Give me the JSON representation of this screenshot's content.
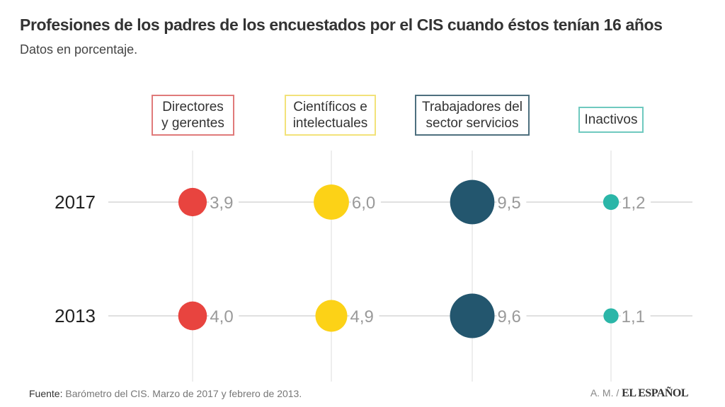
{
  "header": {
    "title": "Profesiones de los padres de los encuestados por el CIS cuando éstos tenían 16 años",
    "subtitle": "Datos en porcentaje."
  },
  "chart_data": {
    "type": "scatter",
    "subtype": "bubble-grid",
    "title": "Profesiones de los padres de los encuestados por el CIS cuando éstos tenían 16 años",
    "subtitle": "Datos en porcentaje.",
    "unit": "%",
    "categories": [
      {
        "label": "Directores y gerentes",
        "lines": [
          "Directores",
          "y gerentes"
        ],
        "color": "#e8443f",
        "border": "#e07a7a"
      },
      {
        "label": "Científicos e intelectuales",
        "lines": [
          "Científicos e",
          "intelectuales"
        ],
        "color": "#fcd217",
        "border": "#f2e27a"
      },
      {
        "label": "Trabajadores del sector servicios",
        "lines": [
          "Trabajadores del",
          "sector servicios"
        ],
        "color": "#23566e",
        "border": "#4d6f7e"
      },
      {
        "label": "Inactivos",
        "lines": [
          "Inactivos"
        ],
        "color": "#2bb6a8",
        "border": "#6fc9bf"
      }
    ],
    "series": [
      {
        "name": "2017",
        "values": [
          3.9,
          6.0,
          9.5,
          1.2
        ],
        "labels": [
          "3,9",
          "6,0",
          "9,5",
          "1,2"
        ]
      },
      {
        "name": "2013",
        "values": [
          4.0,
          4.9,
          9.6,
          1.1
        ],
        "labels": [
          "4,0",
          "4,9",
          "9,6",
          "1,1"
        ]
      }
    ],
    "grid": true,
    "legend": "category boxes on top"
  },
  "footer": {
    "source_label": "Fuente:",
    "source_text": " Barómetro del CIS. Marzo de 2017 y febrero de 2013.",
    "credit": "A. M. / ",
    "brand": "EL ESPAÑOL"
  }
}
